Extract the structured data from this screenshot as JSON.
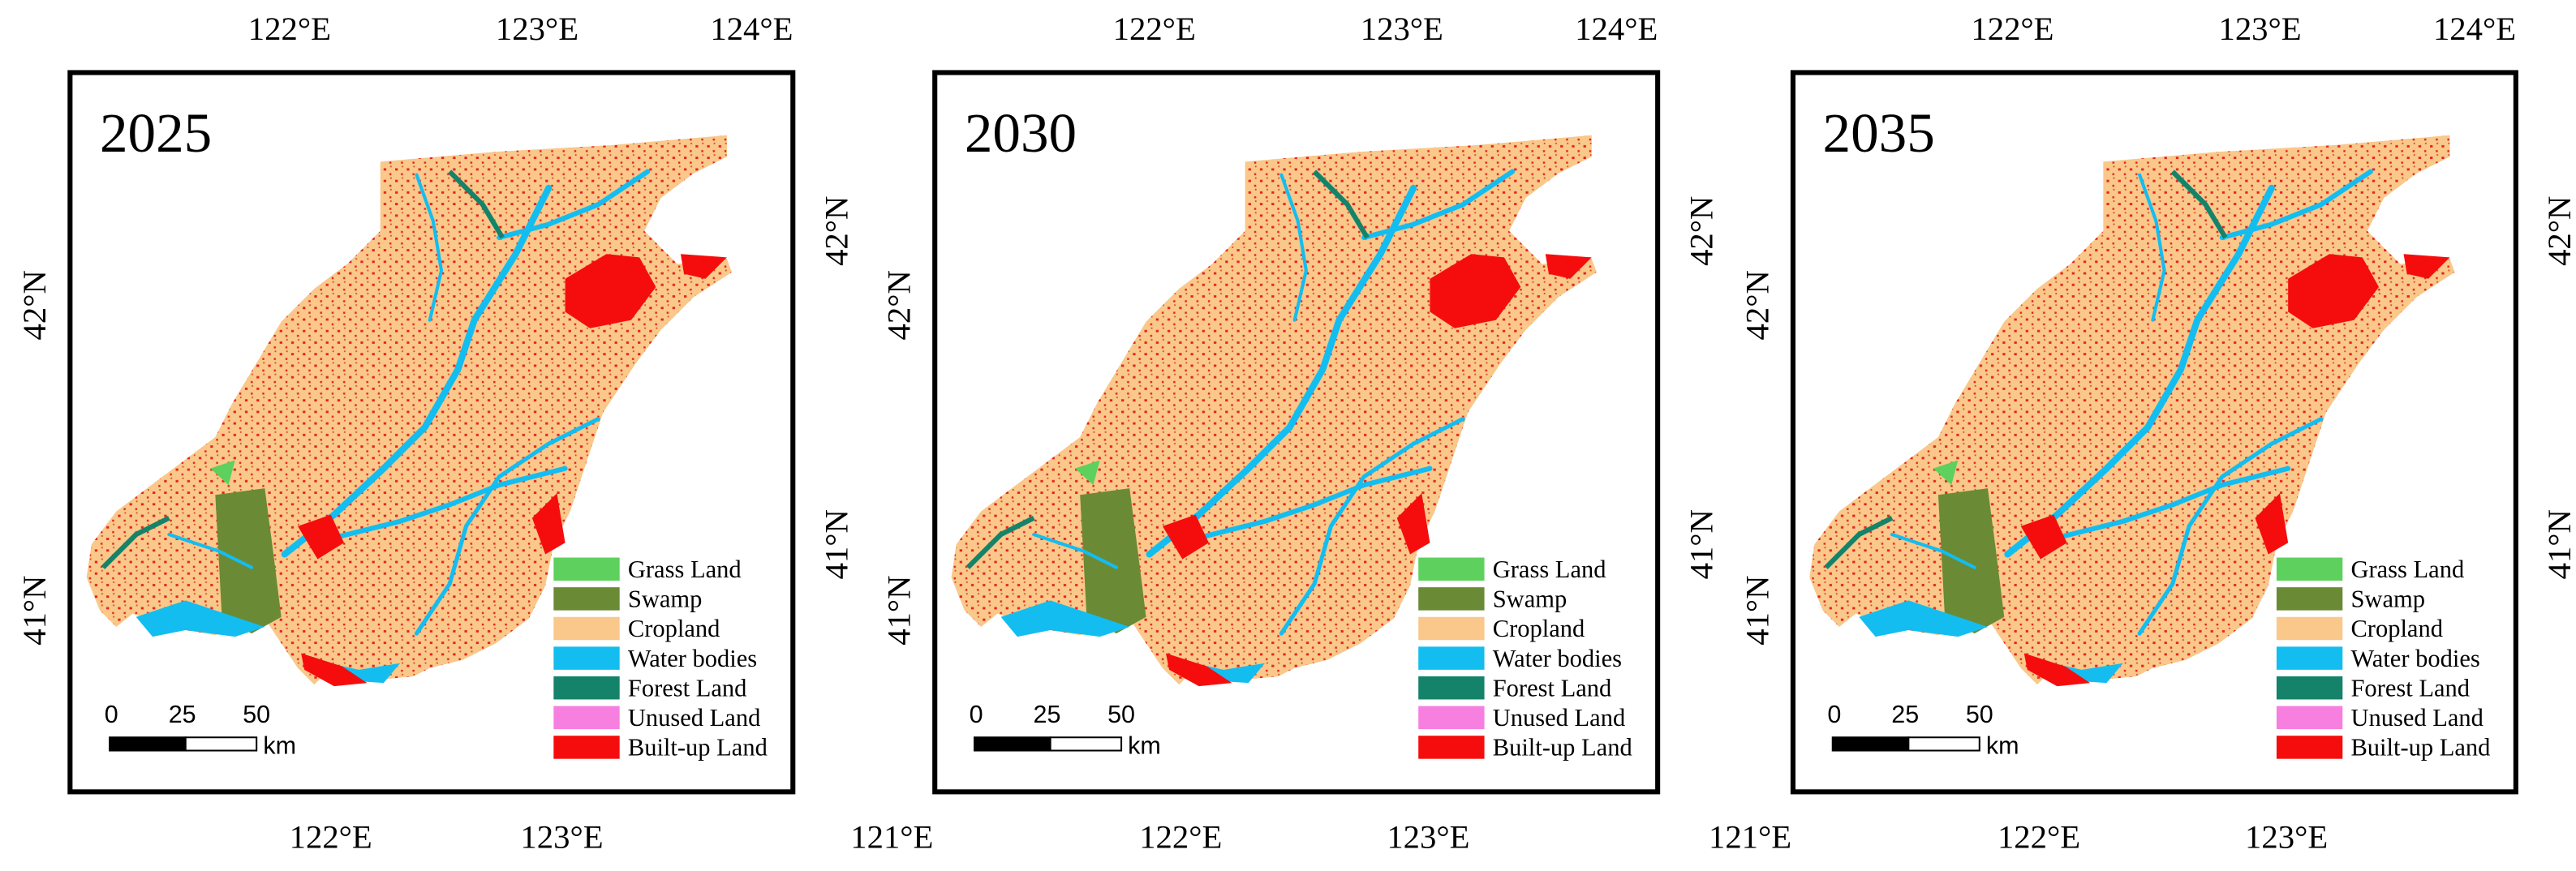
{
  "panels": [
    {
      "year": "2025",
      "top_labels": [
        "122°E",
        "123°E",
        "124°E"
      ],
      "bottom_labels": [
        "122°E",
        "123°E"
      ],
      "left_labels": [
        "42°N",
        "41°N"
      ],
      "right_labels": [
        "42°N",
        "41°N"
      ]
    },
    {
      "year": "2030",
      "top_labels": [
        "122°E",
        "123°E",
        "124°E"
      ],
      "bottom_labels": [
        "121°E",
        "122°E",
        "123°E"
      ],
      "left_labels": [
        "42°N",
        "41°N"
      ],
      "right_labels": [
        "42°N",
        "41°N"
      ]
    },
    {
      "year": "2035",
      "top_labels": [
        "122°E",
        "123°E",
        "124°E"
      ],
      "bottom_labels": [
        "121°E",
        "122°E",
        "123°E"
      ],
      "left_labels": [
        "42°N",
        "41°N"
      ],
      "right_labels": [
        "42°N",
        "41°N"
      ]
    }
  ],
  "legend": {
    "items": [
      {
        "label": "Grass Land",
        "color": "#5ed05e"
      },
      {
        "label": "Swamp",
        "color": "#6b8a35"
      },
      {
        "label": "Cropland",
        "color": "#f9c88a"
      },
      {
        "label": "Water bodies",
        "color": "#13bdf0"
      },
      {
        "label": "Forest Land",
        "color": "#14836a"
      },
      {
        "label": "Unused Land",
        "color": "#f77fe0"
      },
      {
        "label": "Built-up Land",
        "color": "#f50d0d"
      }
    ]
  },
  "scale_bar": {
    "labels": [
      "0",
      "25",
      "50"
    ],
    "unit": "km"
  }
}
